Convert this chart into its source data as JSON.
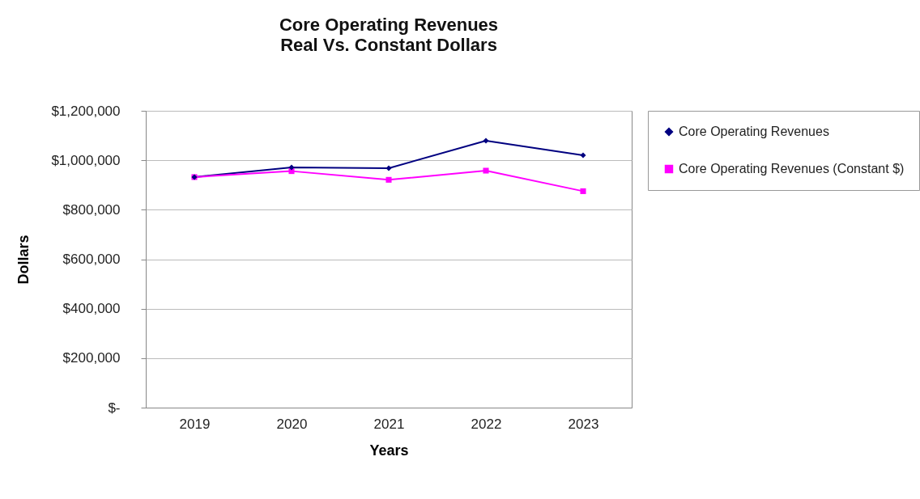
{
  "chart_data": {
    "type": "line",
    "title": "Core Operating Revenues",
    "subtitle": "Real Vs. Constant Dollars",
    "xlabel": "Years",
    "ylabel": "Dollars",
    "categories": [
      "2019",
      "2020",
      "2021",
      "2022",
      "2023"
    ],
    "series": [
      {
        "name": "Core Operating Revenues",
        "color": "#000080",
        "marker": "diamond",
        "values": [
          932000,
          971000,
          968000,
          1079000,
          1020000
        ]
      },
      {
        "name": "Core Operating Revenues (Constant $)",
        "color": "#ff00ff",
        "marker": "square",
        "values": [
          932000,
          956000,
          921000,
          958000,
          875000
        ]
      }
    ],
    "ylim": [
      0,
      1200000
    ],
    "yticks": [
      {
        "value": 0,
        "label": "$-"
      },
      {
        "value": 200000,
        "label": "$200,000"
      },
      {
        "value": 400000,
        "label": "$400,000"
      },
      {
        "value": 600000,
        "label": "$600,000"
      },
      {
        "value": 800000,
        "label": "$800,000"
      },
      {
        "value": 1000000,
        "label": "$1,000,000"
      },
      {
        "value": 1200000,
        "label": "$1,200,000"
      }
    ],
    "grid": "y",
    "legend": "right",
    "line_style": "solid"
  }
}
